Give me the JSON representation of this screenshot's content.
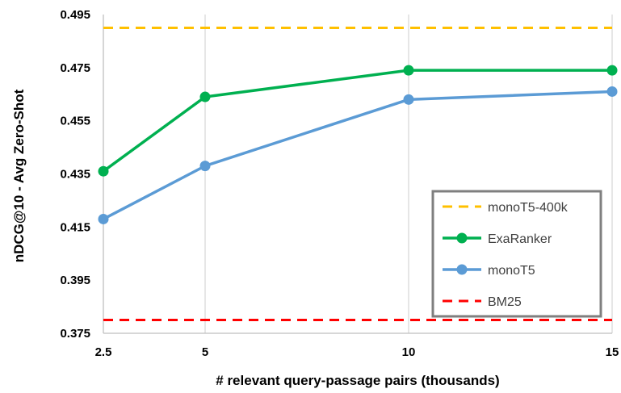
{
  "chart_data": {
    "type": "line",
    "xlabel": "# relevant query-passage pairs (thousands)",
    "ylabel": "nDCG@10 - Avg Zero-Shot",
    "x": [
      2.5,
      5,
      10,
      15
    ],
    "x_tick_labels": [
      "2.5",
      "5",
      "10",
      "15"
    ],
    "ylim": [
      0.375,
      0.495
    ],
    "y_ticks": [
      0.375,
      0.395,
      0.415,
      0.435,
      0.455,
      0.475,
      0.495
    ],
    "y_tick_labels": [
      "0.375",
      "0.395",
      "0.415",
      "0.435",
      "0.455",
      "0.475",
      "0.495"
    ],
    "grid": "vertical",
    "legend_position": "bottom-right",
    "series": [
      {
        "name": "monoT5-400k",
        "style": "dashed",
        "color": "#FFC000",
        "values": [
          0.49,
          0.49,
          0.49,
          0.49
        ]
      },
      {
        "name": "ExaRanker",
        "style": "solid-markers",
        "color": "#00B050",
        "values": [
          0.436,
          0.464,
          0.474,
          0.474
        ]
      },
      {
        "name": "monoT5",
        "style": "solid-markers",
        "color": "#5B9BD5",
        "values": [
          0.418,
          0.438,
          0.463,
          0.466
        ]
      },
      {
        "name": "BM25",
        "style": "dashed",
        "color": "#FF0000",
        "values": [
          0.38,
          0.38,
          0.38,
          0.38
        ]
      }
    ]
  }
}
